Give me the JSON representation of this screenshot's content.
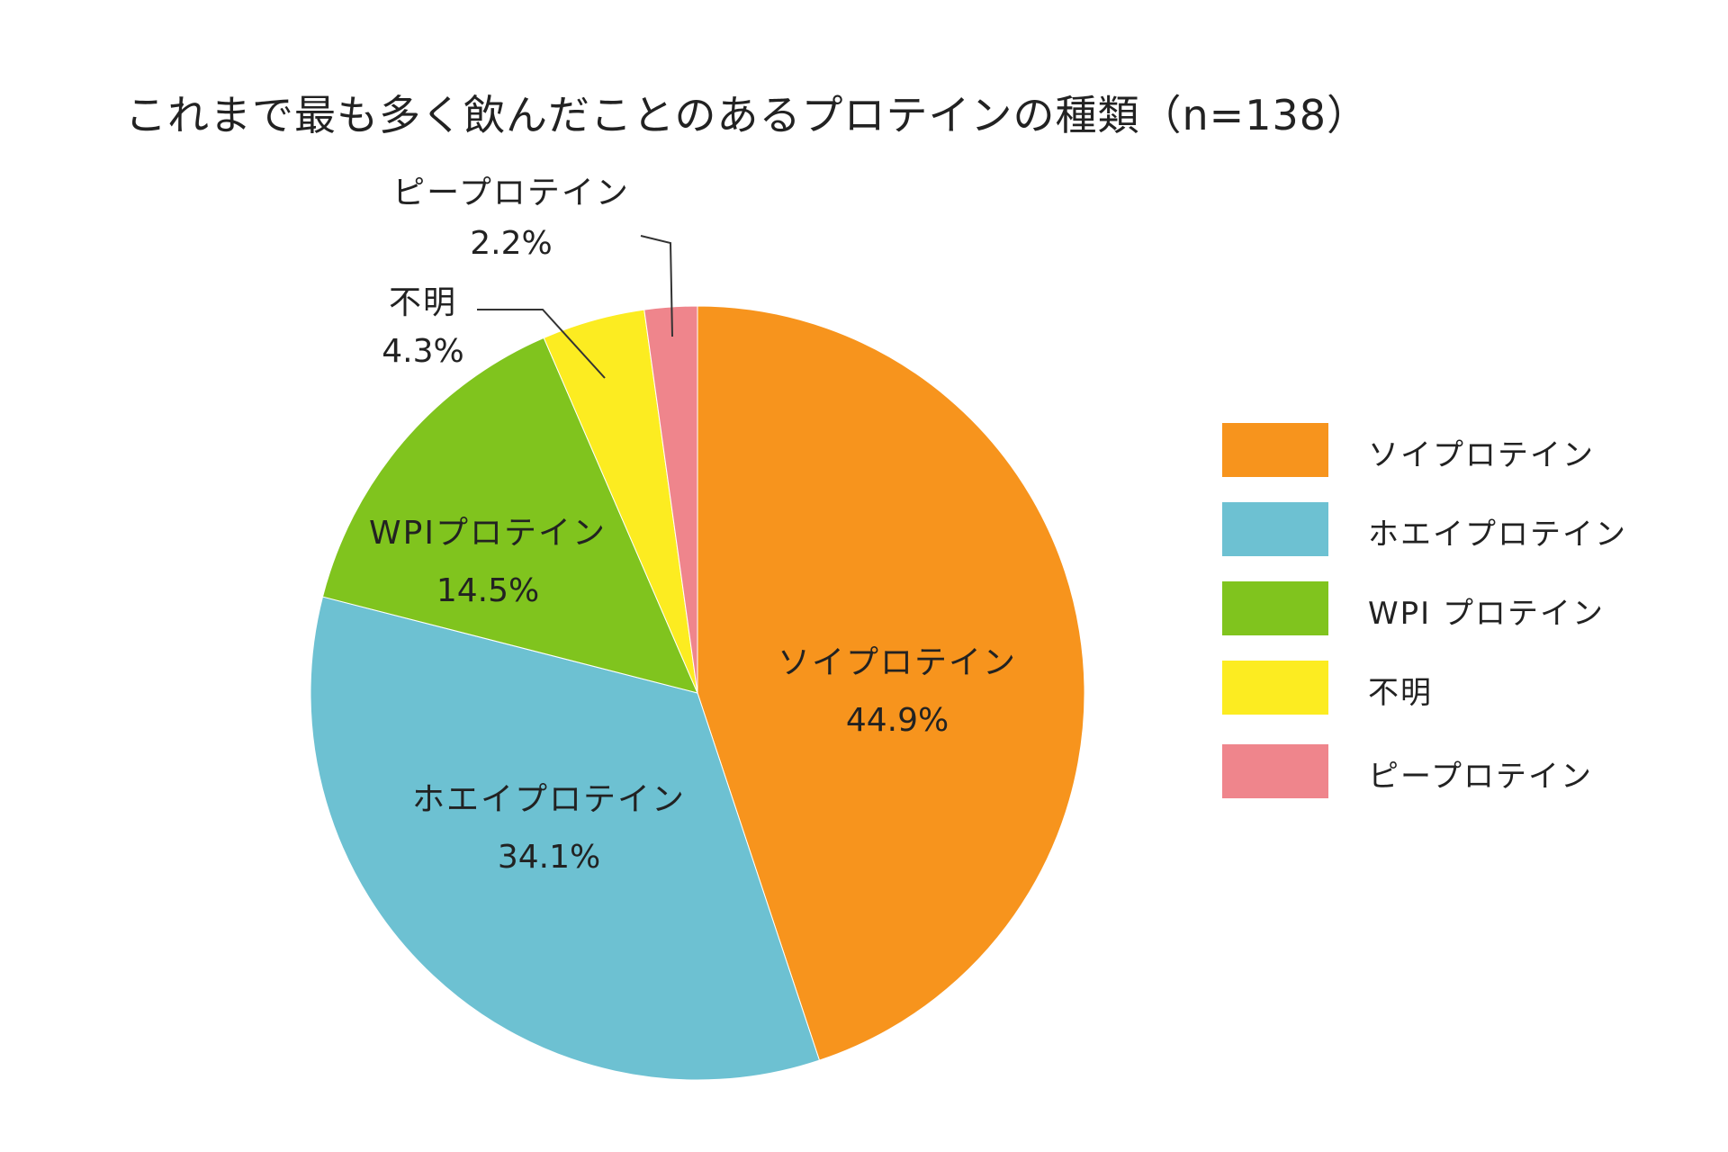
{
  "chart_data": {
    "type": "pie",
    "title": "これまで最も多く飲んだことのあるプロテインの種類（n=138）",
    "slices": [
      {
        "label": "ソイプロテイン",
        "value": 44.9,
        "value_label": "44.9%",
        "legend_label": "ソイプロテイン",
        "color": "#F7941D"
      },
      {
        "label": "ホエイプロテイン",
        "value": 34.1,
        "value_label": "34.1%",
        "legend_label": "ホエイプロテイン",
        "color": "#6DC1D2"
      },
      {
        "label": "WPIプロテイン",
        "value": 14.5,
        "value_label": "14.5%",
        "legend_label": "WPI プロテイン",
        "color": "#80C41E"
      },
      {
        "label": "不明",
        "value": 4.3,
        "value_label": "4.3%",
        "legend_label": "不明",
        "color": "#FCEC21"
      },
      {
        "label": "ピープロテイン",
        "value": 2.2,
        "value_label": "2.2%",
        "legend_label": "ピープロテイン",
        "color": "#EF858C"
      }
    ],
    "start_angle": "12 o'clock",
    "direction": "clockwise",
    "legend_position": "right"
  }
}
